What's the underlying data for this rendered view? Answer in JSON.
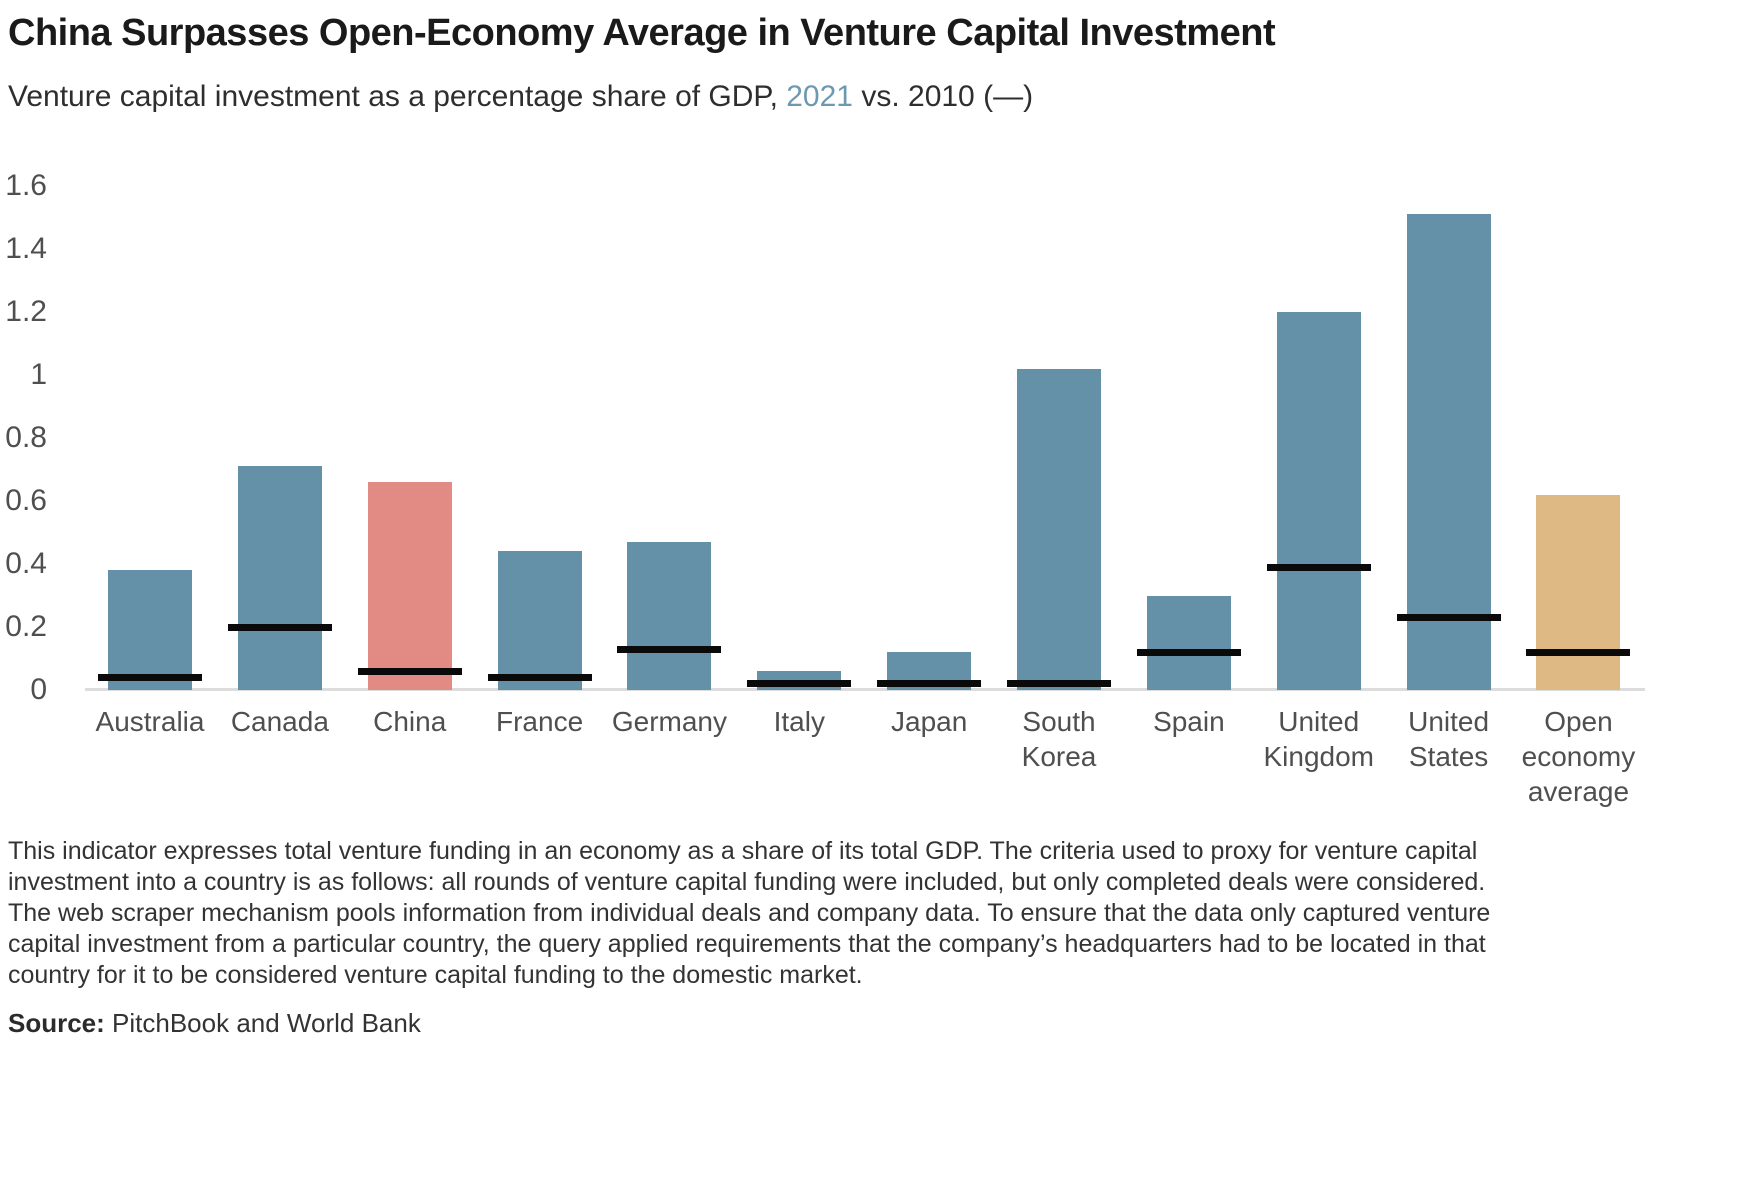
{
  "header": {
    "title": "China Surpasses Open-Economy Average in Venture Capital Investment",
    "subtitle_prefix": "Venture capital investment as a percentage share of GDP, ",
    "subtitle_year_highlight": "2021",
    "subtitle_suffix": " vs. 2010 (—)"
  },
  "chart_data": {
    "type": "bar",
    "title": "China Surpasses Open-Economy Average in Venture Capital Investment",
    "subtitle": "Venture capital investment as a percentage share of GDP, 2021 vs. 2010 (—)",
    "xlabel": "",
    "ylabel": "",
    "ylim": [
      0,
      1.6
    ],
    "grid": false,
    "legend_position": "inline-in-subtitle",
    "yticks": [
      {
        "label": "0",
        "value": 0
      },
      {
        "label": "0.2",
        "value": 0.2
      },
      {
        "label": "0.4",
        "value": 0.4
      },
      {
        "label": "0.6",
        "value": 0.6
      },
      {
        "label": "0.8",
        "value": 0.8
      },
      {
        "label": "1",
        "value": 1
      },
      {
        "label": "1.2",
        "value": 1.2
      },
      {
        "label": "1.4",
        "value": 1.4
      },
      {
        "label": "1.6",
        "value": 1.6
      }
    ],
    "categories": [
      {
        "name": "Australia",
        "label": "Australia",
        "color": "#6591a8"
      },
      {
        "name": "Canada",
        "label": "Canada",
        "color": "#6591a8"
      },
      {
        "name": "China",
        "label": "China",
        "color": "#e18b84"
      },
      {
        "name": "France",
        "label": "France",
        "color": "#6591a8"
      },
      {
        "name": "Germany",
        "label": "Germany",
        "color": "#6591a8"
      },
      {
        "name": "Italy",
        "label": "Italy",
        "color": "#6591a8"
      },
      {
        "name": "Japan",
        "label": "Japan",
        "color": "#6591a8"
      },
      {
        "name": "South Korea",
        "label": "South\nKorea",
        "color": "#6591a8"
      },
      {
        "name": "Spain",
        "label": "Spain",
        "color": "#6591a8"
      },
      {
        "name": "United Kingdom",
        "label": "United\nKingdom",
        "color": "#6591a8"
      },
      {
        "name": "United States",
        "label": "United\nStates",
        "color": "#6591a8"
      },
      {
        "name": "Open economy average",
        "label": "Open\neconomy\naverage",
        "color": "#dfb984"
      }
    ],
    "series": [
      {
        "name": "2021",
        "style": "bar",
        "values": [
          0.38,
          0.71,
          0.66,
          0.44,
          0.47,
          0.06,
          0.12,
          1.02,
          0.3,
          1.2,
          1.51,
          0.62
        ]
      },
      {
        "name": "2010",
        "style": "tick-marker",
        "color": "#0a0a0a",
        "values": [
          0.04,
          0.2,
          0.06,
          0.04,
          0.13,
          0.02,
          0.02,
          0.02,
          0.12,
          0.39,
          0.23,
          0.12
        ]
      }
    ],
    "colors": {
      "bar_default": "#6591a8",
      "bar_china_highlight": "#e18b84",
      "bar_average_highlight": "#dfb984",
      "marker_2010": "#0a0a0a",
      "subtitle_year_accent": "#6b99b1",
      "axis_line": "#dcdcdc"
    }
  },
  "footnote": {
    "text": "This indicator expresses total venture funding in an economy as a share of its total GDP. The criteria used to proxy for venture capital investment into a country is as follows: all rounds of venture capital funding were included, but only completed deals were considered. The web scraper mechanism pools information from individual deals and company data. To ensure that the data only captured venture capital investment from a particular country, the query applied requirements that the company’s headquarters had to be located in that country for it to be considered venture capital funding to the domestic market."
  },
  "source": {
    "label": "Source:",
    "text": " PitchBook and World Bank"
  }
}
